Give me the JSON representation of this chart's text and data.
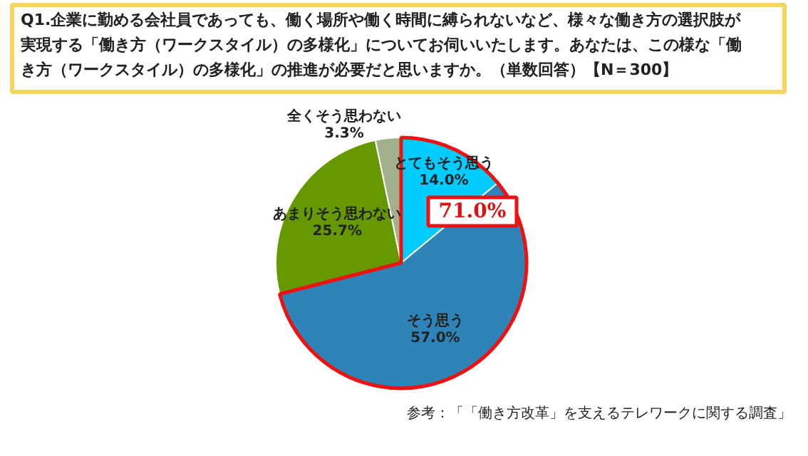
{
  "chart_data": {
    "type": "pie",
    "title": "Q1.企業に勤める会社員であっても、働く場所や働く時間に縛られないなど、様々な働き方の選択肢が実現する「働き方（ワークスタイル）の多様化」についてお伺いいたします。あなたは、この様な「働き方（ワークスタイル）の多様化」の推進が必要だと思いますか。（単数回答）【N＝300】",
    "categories": [
      "とてもそう思う",
      "そう思う",
      "あまりそう思わない",
      "全くそう思わない"
    ],
    "values": [
      14.0,
      57.0,
      25.7,
      3.3
    ],
    "colors": [
      "#00ccff",
      "#2e84b8",
      "#669900",
      "#a3b08c"
    ],
    "value_labels": [
      "14.0%",
      "57.0%",
      "25.7%",
      "3.3%"
    ],
    "annotations": [
      "71.0%",
      "参考：「「働き方改革」を支えるテレワークに関する調査」"
    ],
    "legend": false
  }
}
